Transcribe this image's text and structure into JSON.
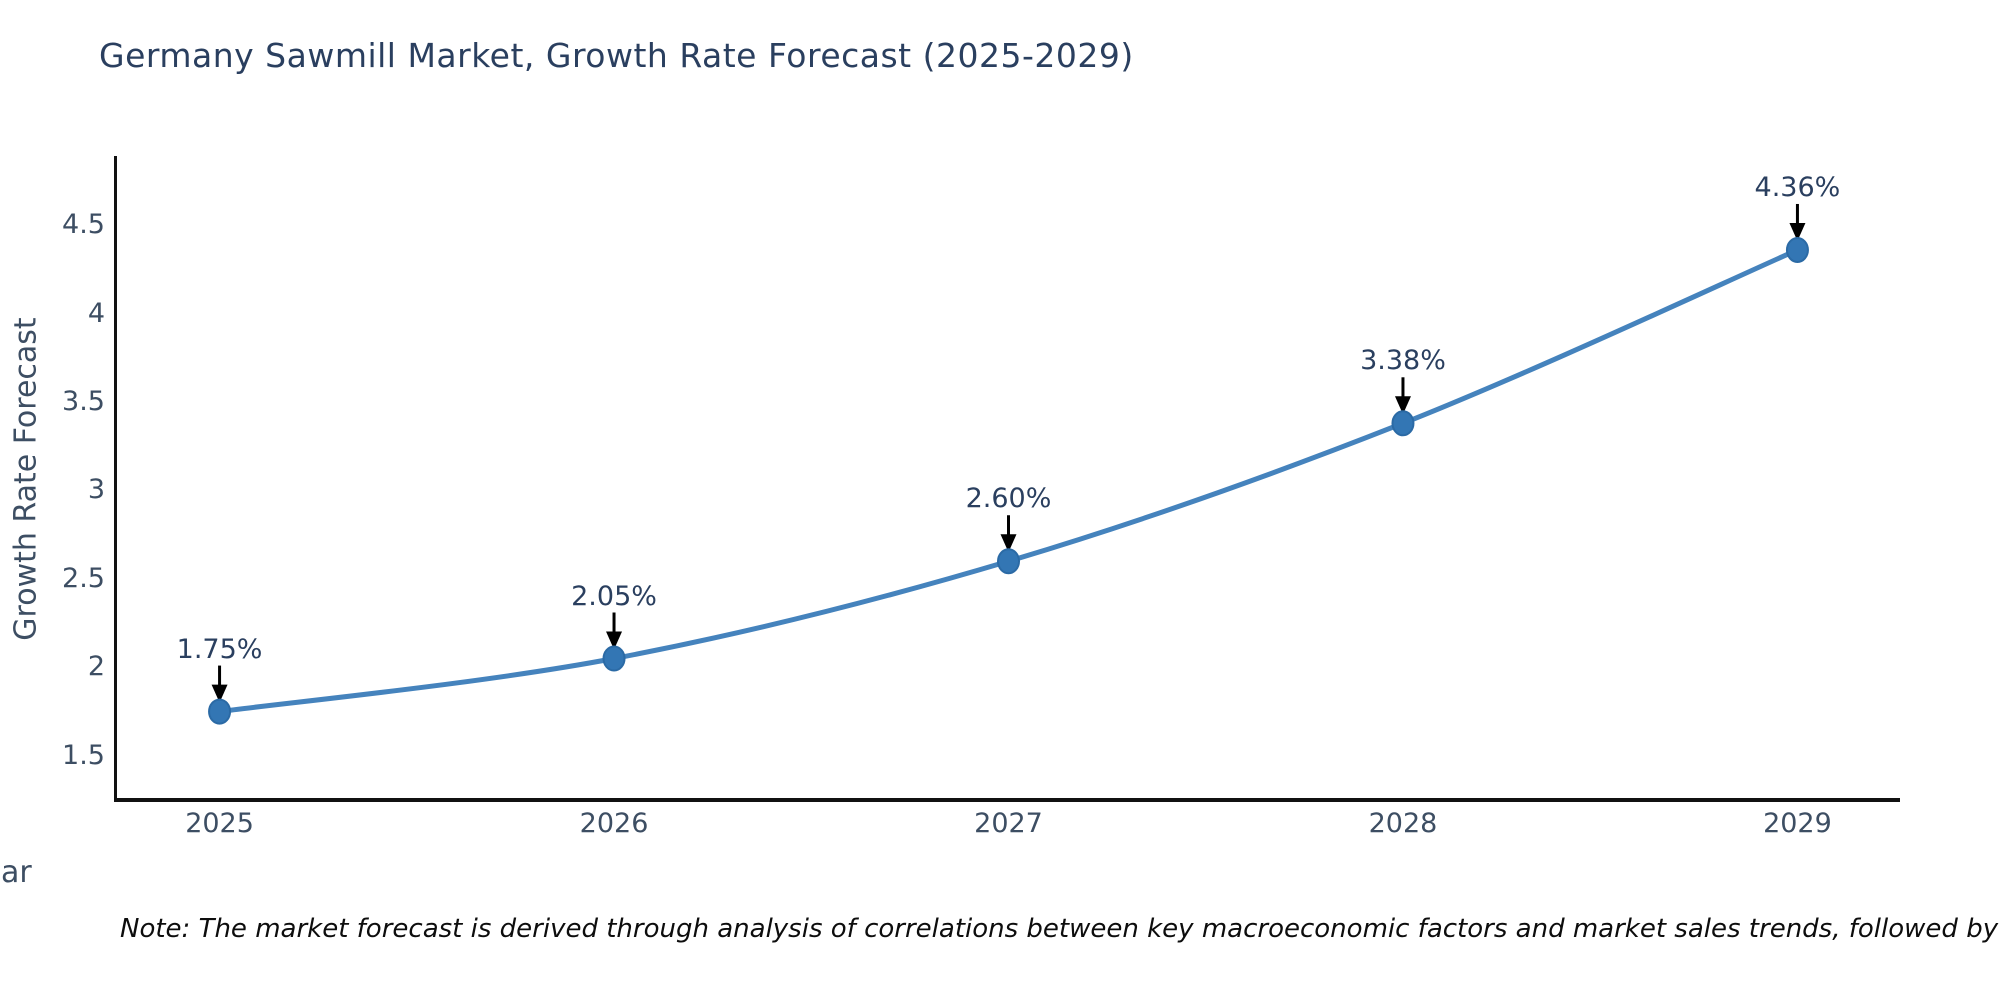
{
  "title": "Germany Sawmill Market, Growth Rate Forecast (2025-2029)",
  "note": "Note: The market forecast is derived through analysis of correlations between key macroeconomic factors and market sales trends, followed by predictive modeling to project future sales",
  "chart_data": {
    "type": "line",
    "title": "Germany Sawmill Market, Growth Rate Forecast (2025-2029)",
    "x": [
      2025,
      2026,
      2027,
      2028,
      2029
    ],
    "y": [
      1.75,
      2.05,
      2.6,
      3.38,
      4.36
    ],
    "point_labels": [
      "1.75%",
      "2.05%",
      "2.60%",
      "3.38%",
      "4.36%"
    ],
    "xlabel": "Year",
    "ylabel": "Growth Rate Forecast",
    "x_ticks": [
      2025,
      2026,
      2027,
      2028,
      2029
    ],
    "y_ticks": [
      1.5,
      2,
      2.5,
      3,
      3.5,
      4,
      4.5
    ],
    "xlim": [
      2024.74,
      2029.26
    ],
    "ylim": [
      1.25,
      4.88
    ],
    "curve": "spline",
    "grid": false,
    "legend": false,
    "annotations": "black arrows pointing down from each percentage label to its data point"
  },
  "colors": {
    "line": "#4583bd",
    "marker_fill": "#3376b4",
    "marker_edge": "#2b6aa5",
    "arrow": "#000000",
    "title": "#2a3f5f",
    "tick": "#3d4e63",
    "axis_title": "#3d4e63",
    "axis_line": "#111111",
    "note": "#0d0d0d",
    "background": "#ffffff"
  }
}
